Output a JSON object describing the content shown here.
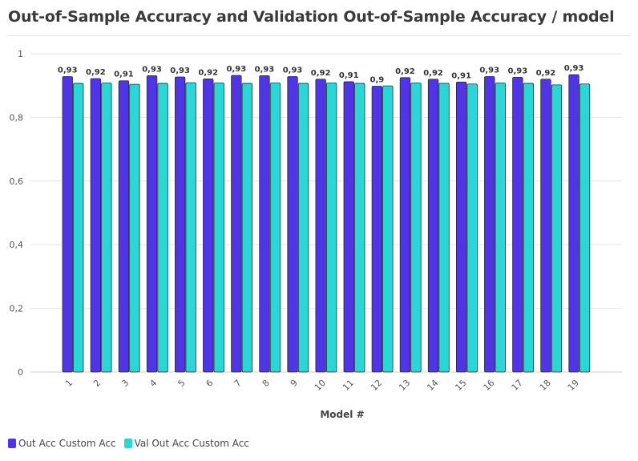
{
  "chart_data": {
    "type": "bar",
    "title": "Out-of-Sample Accuracy and Validation Out-of-Sample Accuracy / model",
    "xlabel": "Model #",
    "ylabel": "",
    "categories": [
      "1",
      "2",
      "3",
      "4",
      "5",
      "6",
      "7",
      "8",
      "9",
      "10",
      "11",
      "12",
      "13",
      "14",
      "15",
      "16",
      "17",
      "18",
      "19"
    ],
    "series": [
      {
        "name": "Out Acc Custom Acc",
        "color": "#5035e6",
        "values": [
          0.928,
          0.922,
          0.915,
          0.931,
          0.927,
          0.921,
          0.932,
          0.931,
          0.928,
          0.92,
          0.912,
          0.898,
          0.925,
          0.92,
          0.911,
          0.928,
          0.926,
          0.92,
          0.934
        ],
        "labels": [
          "0,93",
          "0,92",
          "0,91",
          "0,93",
          "0,93",
          "0,92",
          "0,93",
          "0,93",
          "0,93",
          "0,92",
          "0,91",
          "0,9",
          "0,92",
          "0,92",
          "0,91",
          "0,93",
          "0,93",
          "0,92",
          "0,93"
        ]
      },
      {
        "name": "Val Out Acc Custom Acc",
        "color": "#2bd6d6",
        "values": [
          0.907,
          0.908,
          0.904,
          0.907,
          0.909,
          0.908,
          0.907,
          0.908,
          0.907,
          0.908,
          0.907,
          0.899,
          0.908,
          0.907,
          0.905,
          0.908,
          0.907,
          0.902,
          0.905
        ]
      }
    ],
    "ylim": [
      0,
      1
    ],
    "yticks": [
      {
        "value": 0,
        "label": "0"
      },
      {
        "value": 0.2,
        "label": "0,2"
      },
      {
        "value": 0.4,
        "label": "0,4"
      },
      {
        "value": 0.6,
        "label": "0,6"
      },
      {
        "value": 0.8,
        "label": "0,8"
      },
      {
        "value": 1,
        "label": "1"
      }
    ],
    "grid": true,
    "legend_position": "bottom-left"
  }
}
